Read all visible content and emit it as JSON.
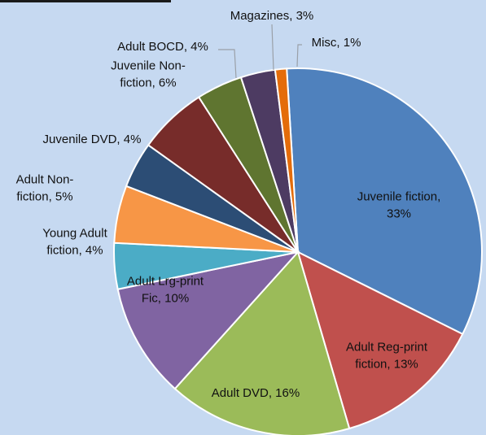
{
  "chart_data": {
    "type": "pie",
    "title": "",
    "slices": [
      {
        "label": "Juvenile fiction",
        "value": 33,
        "display": "33%",
        "color": "#4f81bd"
      },
      {
        "label": "Adult Reg-print fiction",
        "value": 13,
        "display": "13%",
        "color": "#c0504d"
      },
      {
        "label": "Adult DVD",
        "value": 16,
        "display": "16%",
        "color": "#9bbb59"
      },
      {
        "label": "Adult Lrg-print Fic",
        "value": 10,
        "display": "10%",
        "color": "#8064a2"
      },
      {
        "label": "Young Adult fiction",
        "value": 4,
        "display": "4%",
        "color": "#4bacc6"
      },
      {
        "label": "Adult Non-fiction",
        "value": 5,
        "display": "5%",
        "color": "#f79646"
      },
      {
        "label": "Juvenile DVD",
        "value": 4,
        "display": "4%",
        "color": "#2c4d75"
      },
      {
        "label": "Juvenile Non-fiction",
        "value": 6,
        "display": "6%",
        "color": "#772c2a"
      },
      {
        "label": "Adult BOCD",
        "value": 4,
        "display": "4%",
        "color": "#5f7530"
      },
      {
        "label": "Magazines",
        "value": 3,
        "display": "3%",
        "color": "#4d3b62"
      },
      {
        "label": "Misc",
        "value": 1,
        "display": "1%",
        "color": "#e46c0a"
      }
    ],
    "label_lines": [
      [
        "Juvenile fiction,",
        "33%"
      ],
      [
        "Adult Reg-print",
        "fiction, 13%"
      ],
      [
        "Adult DVD, 16%"
      ],
      [
        "Adult Lrg-print",
        "Fic, 10%"
      ],
      [
        "Young Adult",
        "fiction, 4%"
      ],
      [
        "Adult Non-",
        "fiction, 5%"
      ],
      [
        "Juvenile DVD, 4%"
      ],
      [
        "Juvenile Non-",
        "fiction, 6%"
      ],
      [
        "Adult BOCD, 4%"
      ],
      [
        "Magazines, 3%"
      ],
      [
        "Misc, 1%"
      ]
    ],
    "legend": "none"
  }
}
